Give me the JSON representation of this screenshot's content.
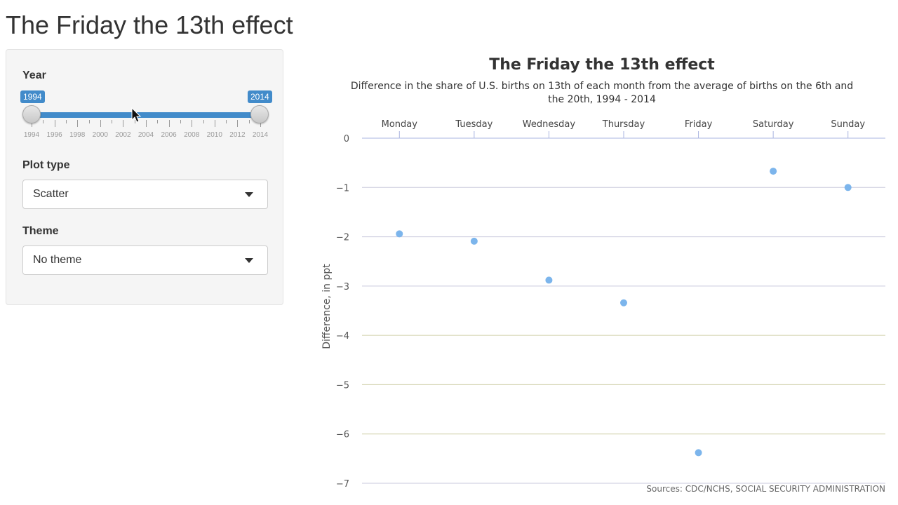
{
  "page": {
    "title": "The Friday the 13th effect"
  },
  "sidebar": {
    "year": {
      "label": "Year",
      "min": 1994,
      "max": 2014,
      "from": "1994",
      "to": "2014",
      "tick_labels": [
        "1994",
        "1996",
        "1998",
        "2000",
        "2002",
        "2004",
        "2006",
        "2008",
        "2010",
        "2012",
        "2014"
      ]
    },
    "plot_type": {
      "label": "Plot type",
      "value": "Scatter"
    },
    "theme": {
      "label": "Theme",
      "value": "No theme"
    }
  },
  "colors": {
    "accent": "#428bca",
    "point": "#7cb5ec"
  },
  "chart_data": {
    "type": "scatter",
    "title": "The Friday the 13th effect",
    "subtitle": "Difference in the share of U.S. births on 13th of each month from the average of births on the 6th and the 20th, 1994 - 2014",
    "categories": [
      "Monday",
      "Tuesday",
      "Wednesday",
      "Thursday",
      "Friday",
      "Saturday",
      "Sunday"
    ],
    "values": [
      -1.94,
      -2.09,
      -2.88,
      -3.34,
      -6.38,
      -0.67,
      -1.0
    ],
    "ylabel": "Difference, in ppt",
    "ylim": [
      -7,
      0
    ],
    "yticks": [
      0,
      -1,
      -2,
      -3,
      -4,
      -5,
      -6,
      -7
    ],
    "ytick_labels": [
      "0",
      "−1",
      "−2",
      "−3",
      "−4",
      "−5",
      "−6",
      "−7"
    ],
    "xaxis_position": "top",
    "grid": true,
    "credits": "Sources: CDC/NCHS, SOCIAL SECURITY ADMINISTRATION"
  }
}
